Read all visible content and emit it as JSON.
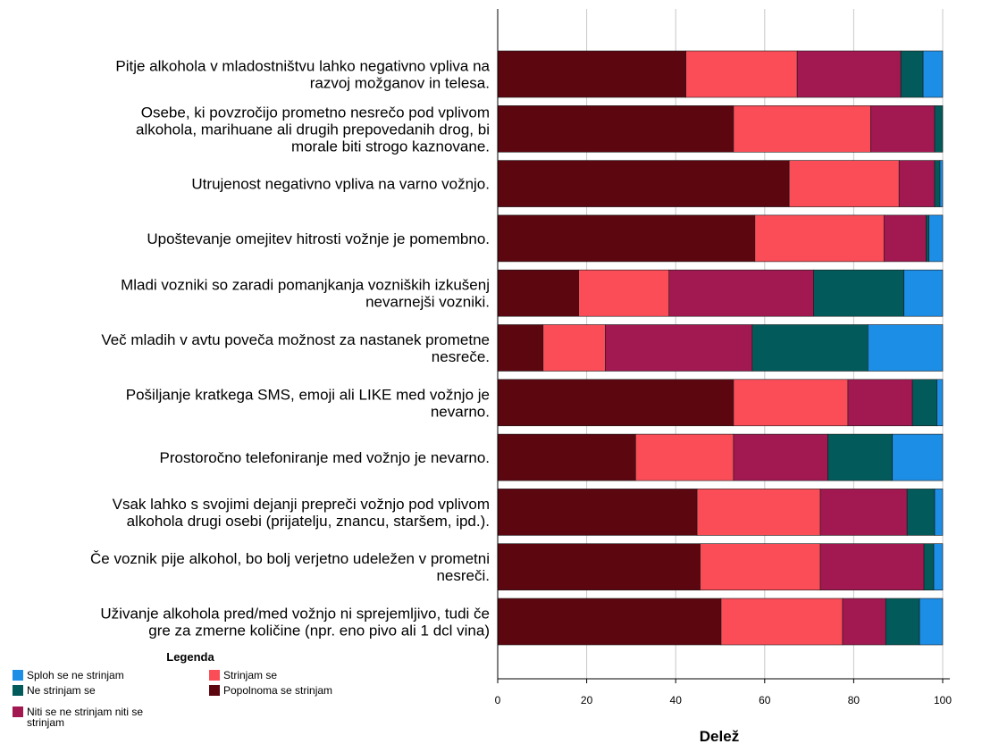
{
  "chart_data": {
    "type": "bar",
    "orientation": "horizontal",
    "stacked": true,
    "xlabel": "Delež",
    "xlim": [
      0,
      100
    ],
    "xticks": [
      0,
      20,
      40,
      60,
      80,
      100
    ],
    "grid": "vertical",
    "categories": [
      [
        "Pitje alkohola v mladostništvu lahko negativno vpliva na",
        "razvoj možganov in telesa."
      ],
      [
        "Osebe, ki povzročijo prometno nesrečo pod vplivom",
        "alkohola, marihuane ali drugih prepovedanih drog, bi",
        "morale biti strogo kaznovane."
      ],
      [
        "Utrujenost negativno vpliva na varno vožnjo."
      ],
      [
        "Upoštevanje omejitev hitrosti vožnje je pomembno."
      ],
      [
        "Mladi vozniki so zaradi pomanjkanja vozniških izkušenj",
        "nevarnejši vozniki."
      ],
      [
        "Več mladih v avtu poveča možnost za nastanek prometne",
        "nesreče."
      ],
      [
        "Pošiljanje kratkega SMS, emoji ali LIKE med vožnjo je",
        "nevarno."
      ],
      [
        "Prostoročno telefoniranje med vožnjo je nevarno."
      ],
      [
        "Vsak lahko s svojimi dejanji prepreči vožnjo pod vplivom",
        "alkohola drugi osebi (prijatelju, znancu, staršem, ipd.)."
      ],
      [
        "Če voznik pije alkohol, bo bolj verjetno udeležen v prometni",
        "nesreči."
      ],
      [
        "Uživanje alkohola pred/med vožnjo ni sprejemljivo, tudi če",
        "gre za zmerne količine (npr. eno pivo ali 1 dcl vina)"
      ]
    ],
    "series": [
      {
        "name": "Popolnoma se strinjam",
        "color": "#5c0610",
        "values": [
          42.3,
          53.0,
          65.5,
          57.8,
          18.2,
          10.2,
          53.0,
          31.0,
          44.8,
          45.5,
          50.2
        ]
      },
      {
        "name": "Strinjam se",
        "color": "#fb4d58",
        "values": [
          25.0,
          30.8,
          24.7,
          29.0,
          20.3,
          14.0,
          25.7,
          22.0,
          27.7,
          27.0,
          27.3
        ]
      },
      {
        "name": "Niti se ne strinjam niti se strinjam",
        "color": "#a21850",
        "values": [
          23.3,
          14.4,
          8.0,
          9.5,
          32.5,
          33.0,
          14.5,
          21.2,
          19.5,
          23.3,
          9.7
        ]
      },
      {
        "name": "Ne strinjam se",
        "color": "#025b5a",
        "values": [
          5.0,
          1.8,
          1.2,
          0.6,
          20.3,
          26.0,
          5.5,
          14.5,
          6.2,
          2.2,
          7.6
        ]
      },
      {
        "name": "Sploh se ne strinjam",
        "color": "#1d8ee6",
        "values": [
          4.4,
          0.0,
          0.6,
          3.1,
          8.7,
          16.8,
          1.3,
          11.3,
          1.8,
          2.0,
          5.2
        ]
      }
    ],
    "legend": {
      "title": "Legenda",
      "position": "bottom-left",
      "items": [
        {
          "label": "Sploh se ne strinjam",
          "color": "#1d8ee6"
        },
        {
          "label": "Strinjam se",
          "color": "#fb4d58"
        },
        {
          "label": "Ne strinjam se",
          "color": "#025b5a"
        },
        {
          "label": "Popolnoma se strinjam",
          "color": "#5c0610"
        },
        {
          "label": "Niti se ne strinjam niti se strinjam",
          "color": "#a21850"
        }
      ]
    }
  }
}
